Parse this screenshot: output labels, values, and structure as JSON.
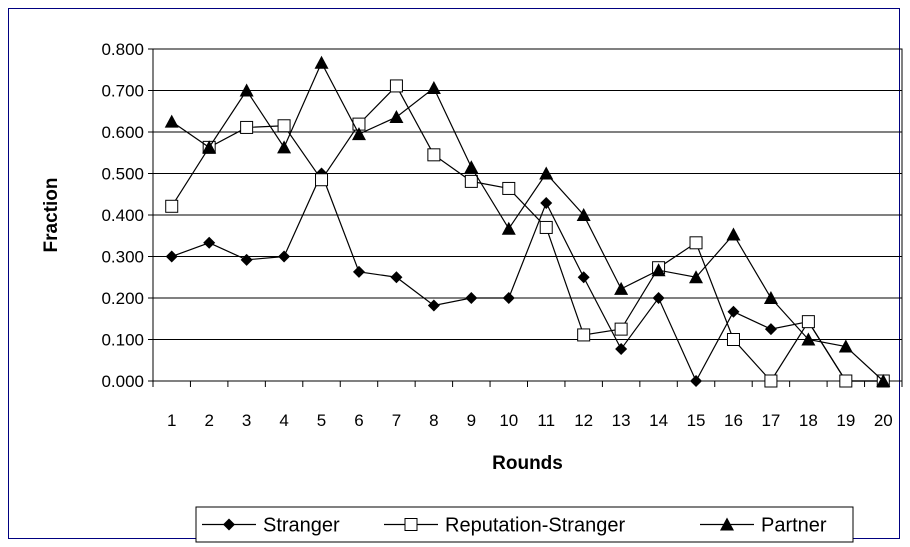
{
  "chart_data": {
    "type": "line",
    "title": "",
    "xlabel": "Rounds",
    "ylabel": "Fraction",
    "x": [
      1,
      2,
      3,
      4,
      5,
      6,
      7,
      8,
      9,
      10,
      11,
      12,
      13,
      14,
      15,
      16,
      17,
      18,
      19,
      20
    ],
    "ylim": [
      0,
      0.8
    ],
    "yticks": [
      "0.000",
      "0.100",
      "0.200",
      "0.300",
      "0.400",
      "0.500",
      "0.600",
      "0.700",
      "0.800"
    ],
    "grid": "horizontal",
    "legend_position": "bottom",
    "series": [
      {
        "name": "Stranger",
        "marker": "diamond-filled",
        "values": [
          0.3,
          0.333,
          0.292,
          0.3,
          0.5,
          0.263,
          0.25,
          0.182,
          0.2,
          0.2,
          0.429,
          0.25,
          0.077,
          0.2,
          0.0,
          0.167,
          0.125,
          0.143,
          0.0,
          0.0
        ]
      },
      {
        "name": "Reputation-Stranger",
        "marker": "square-open",
        "values": [
          0.421,
          0.563,
          0.611,
          0.615,
          0.485,
          0.619,
          0.711,
          0.545,
          0.481,
          0.464,
          0.37,
          0.111,
          0.125,
          0.273,
          0.333,
          0.1,
          0.0,
          0.143,
          0.0,
          0.0
        ]
      },
      {
        "name": "Partner",
        "marker": "triangle-filled",
        "values": [
          0.625,
          0.563,
          0.7,
          0.563,
          0.767,
          0.595,
          0.636,
          0.706,
          0.515,
          0.367,
          0.5,
          0.4,
          0.222,
          0.267,
          0.25,
          0.353,
          0.2,
          0.1,
          0.083,
          0.0
        ]
      }
    ]
  }
}
